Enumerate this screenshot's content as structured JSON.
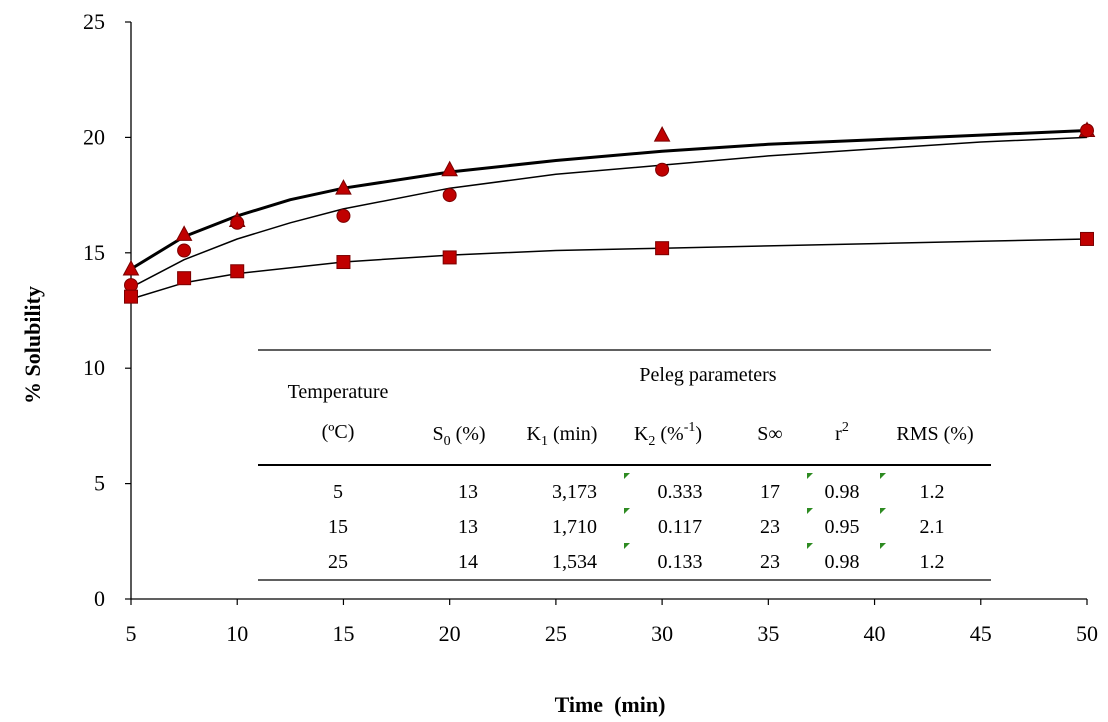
{
  "chart_data": {
    "type": "scatter",
    "xlabel": "Time  (min)",
    "ylabel": "% Solubility",
    "xlim": [
      5,
      50
    ],
    "ylim": [
      0,
      25
    ],
    "xticks": [
      "5",
      "10",
      "15",
      "20",
      "25",
      "30",
      "35",
      "40",
      "45",
      "50"
    ],
    "yticks": [
      "0",
      "5",
      "10",
      "15",
      "20",
      "25"
    ],
    "grid": false,
    "legend": "none",
    "series": [
      {
        "marker": "triangle",
        "color": "#c00000",
        "points": [
          [
            5,
            14.3
          ],
          [
            7.5,
            15.8
          ],
          [
            10,
            16.4
          ],
          [
            15,
            17.8
          ],
          [
            20,
            18.6
          ],
          [
            30,
            20.1
          ],
          [
            50,
            20.3
          ]
        ],
        "fit": [
          [
            5,
            14.3
          ],
          [
            7.5,
            15.7
          ],
          [
            10,
            16.6
          ],
          [
            12.5,
            17.3
          ],
          [
            15,
            17.8
          ],
          [
            20,
            18.5
          ],
          [
            25,
            19.0
          ],
          [
            30,
            19.4
          ],
          [
            35,
            19.7
          ],
          [
            40,
            19.9
          ],
          [
            45,
            20.1
          ],
          [
            50,
            20.3
          ]
        ],
        "fit_width": 3
      },
      {
        "marker": "circle",
        "color": "#c00000",
        "points": [
          [
            5,
            13.6
          ],
          [
            7.5,
            15.1
          ],
          [
            10,
            16.3
          ],
          [
            15,
            16.6
          ],
          [
            20,
            17.5
          ],
          [
            30,
            18.6
          ],
          [
            50,
            20.3
          ]
        ],
        "fit": [
          [
            5,
            13.5
          ],
          [
            7.5,
            14.7
          ],
          [
            10,
            15.6
          ],
          [
            12.5,
            16.3
          ],
          [
            15,
            16.9
          ],
          [
            20,
            17.8
          ],
          [
            25,
            18.4
          ],
          [
            30,
            18.8
          ],
          [
            35,
            19.2
          ],
          [
            40,
            19.5
          ],
          [
            45,
            19.8
          ],
          [
            50,
            20.0
          ]
        ],
        "fit_width": 1.5
      },
      {
        "marker": "square",
        "color": "#c00000",
        "points": [
          [
            5,
            13.1
          ],
          [
            7.5,
            13.9
          ],
          [
            10,
            14.2
          ],
          [
            15,
            14.6
          ],
          [
            20,
            14.8
          ],
          [
            30,
            15.2
          ],
          [
            50,
            15.6
          ]
        ],
        "fit": [
          [
            5,
            13.0
          ],
          [
            7.5,
            13.7
          ],
          [
            10,
            14.1
          ],
          [
            15,
            14.6
          ],
          [
            20,
            14.9
          ],
          [
            25,
            15.1
          ],
          [
            30,
            15.2
          ],
          [
            35,
            15.3
          ],
          [
            40,
            15.4
          ],
          [
            45,
            15.5
          ],
          [
            50,
            15.6
          ]
        ],
        "fit_width": 1.5
      }
    ],
    "table": {
      "header_temperature": "Temperature",
      "header_temperature_unit": "(ºC)",
      "header_group": "Peleg parameters",
      "columns": [
        {
          "main": "S",
          "sub": "0",
          "sup": "",
          "tail": " (%)"
        },
        {
          "main": "K",
          "sub": "1",
          "sup": "",
          "tail": " (min)"
        },
        {
          "main": "K",
          "sub": "2",
          "sup": "",
          "tail": " (%",
          "sup2": "-1",
          "tail2": ")"
        },
        {
          "main": "S∞",
          "sub": "",
          "sup": "",
          "tail": ""
        },
        {
          "main": "r",
          "sub": "",
          "sup": "2",
          "tail": ""
        },
        {
          "main": "RMS (%)",
          "sub": "",
          "sup": "",
          "tail": ""
        }
      ],
      "rows": [
        [
          "5",
          "13",
          "3,173",
          "0.333",
          "17",
          "0.98",
          "1.2"
        ],
        [
          "15",
          "13",
          "1,710",
          "0.117",
          "23",
          "0.95",
          "2.1"
        ],
        [
          "25",
          "14",
          "1,534",
          "0.133",
          "23",
          "0.98",
          "1.2"
        ]
      ]
    }
  }
}
